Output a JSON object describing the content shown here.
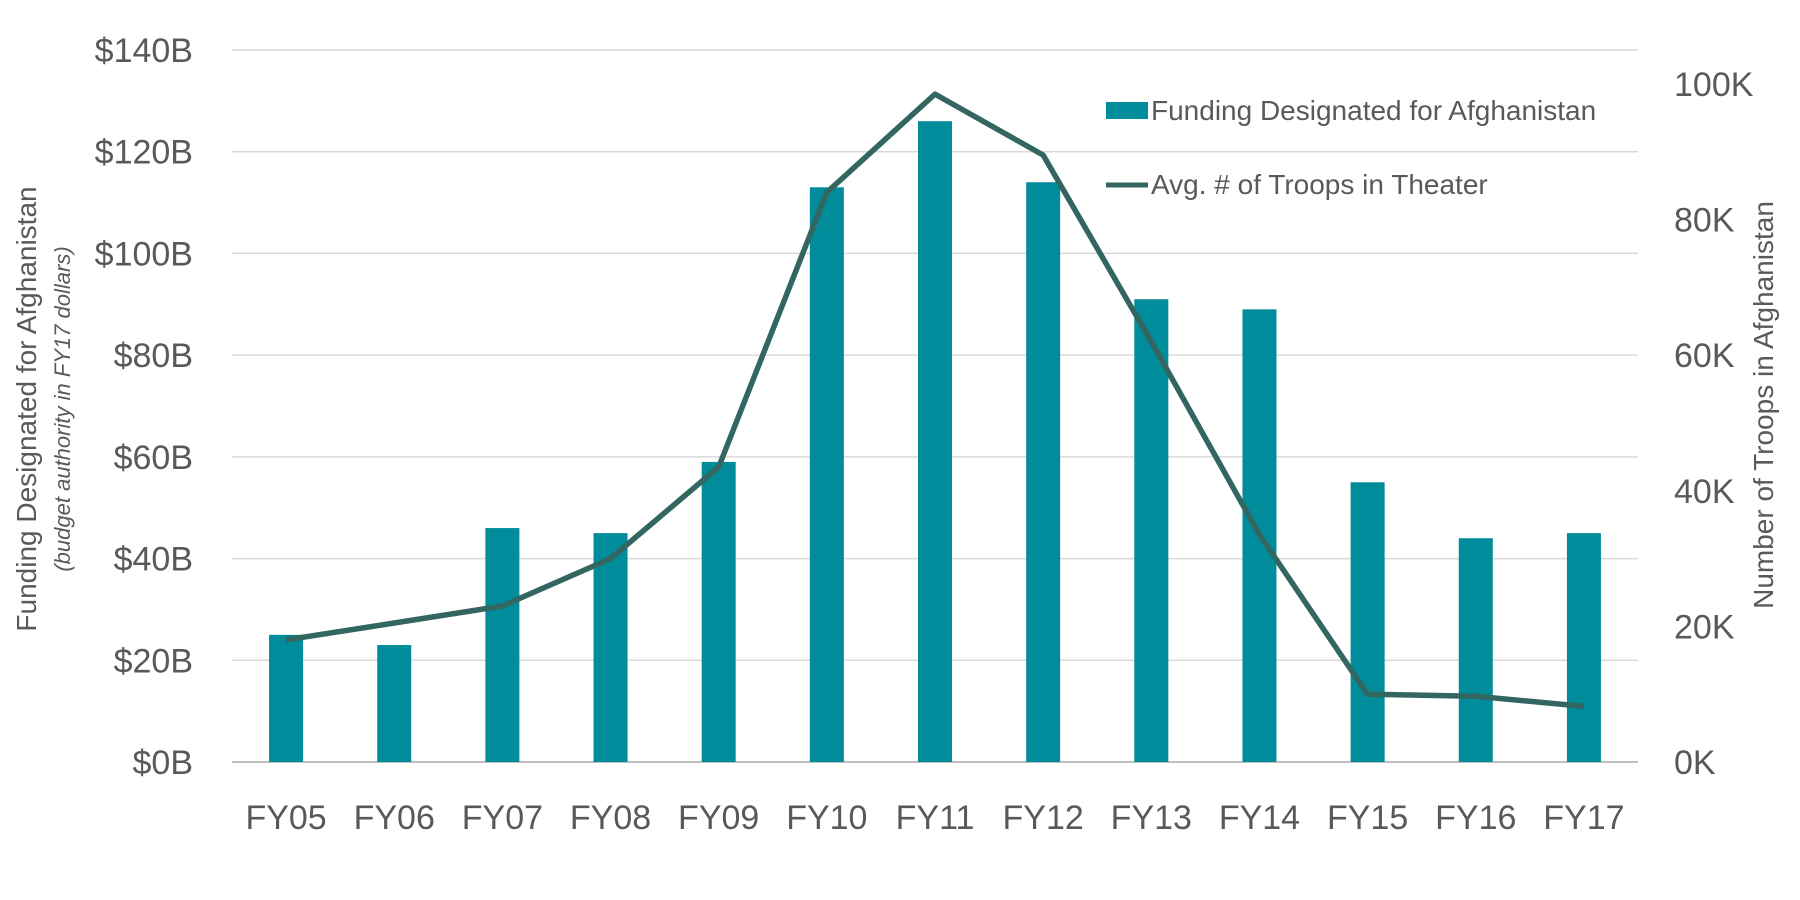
{
  "chart_data": {
    "type": "bar",
    "categories": [
      "FY05",
      "FY06",
      "FY07",
      "FY08",
      "FY09",
      "FY10",
      "FY11",
      "FY12",
      "FY13",
      "FY14",
      "FY15",
      "FY16",
      "FY17"
    ],
    "series": [
      {
        "name": "Funding Designated for Afghanistan",
        "type": "bar",
        "axis": "left",
        "color": "#008C9A",
        "values": [
          25,
          23,
          46,
          45,
          59,
          113,
          126,
          114,
          91,
          89,
          55,
          44,
          45
        ]
      },
      {
        "name": "Avg. # of Troops in Theater",
        "type": "line",
        "axis": "right",
        "color": "#336660",
        "values": [
          18,
          20.5,
          23,
          30,
          43.5,
          84,
          98.5,
          89.5,
          62,
          33.5,
          10,
          9.7,
          8.2
        ]
      }
    ],
    "y_left": {
      "label": "Funding Designated for Afghanistan",
      "sublabel": "(budget authority in FY17 dollars)",
      "ylim": [
        0,
        140
      ],
      "ticks": [
        0,
        20,
        40,
        60,
        80,
        100,
        120,
        140
      ],
      "tick_labels": [
        "$0B",
        "$20B",
        "$40B",
        "$60B",
        "$80B",
        "$100B",
        "$120B",
        "$140B"
      ]
    },
    "y_right": {
      "label": "Number of Troops in Afghanistan",
      "ylim": [
        0,
        105
      ],
      "ticks": [
        0,
        20,
        40,
        60,
        80,
        100
      ],
      "tick_labels": [
        "0K",
        "20K",
        "40K",
        "60K",
        "80K",
        "100K"
      ]
    },
    "grid": true,
    "legend_position": "top-right"
  }
}
